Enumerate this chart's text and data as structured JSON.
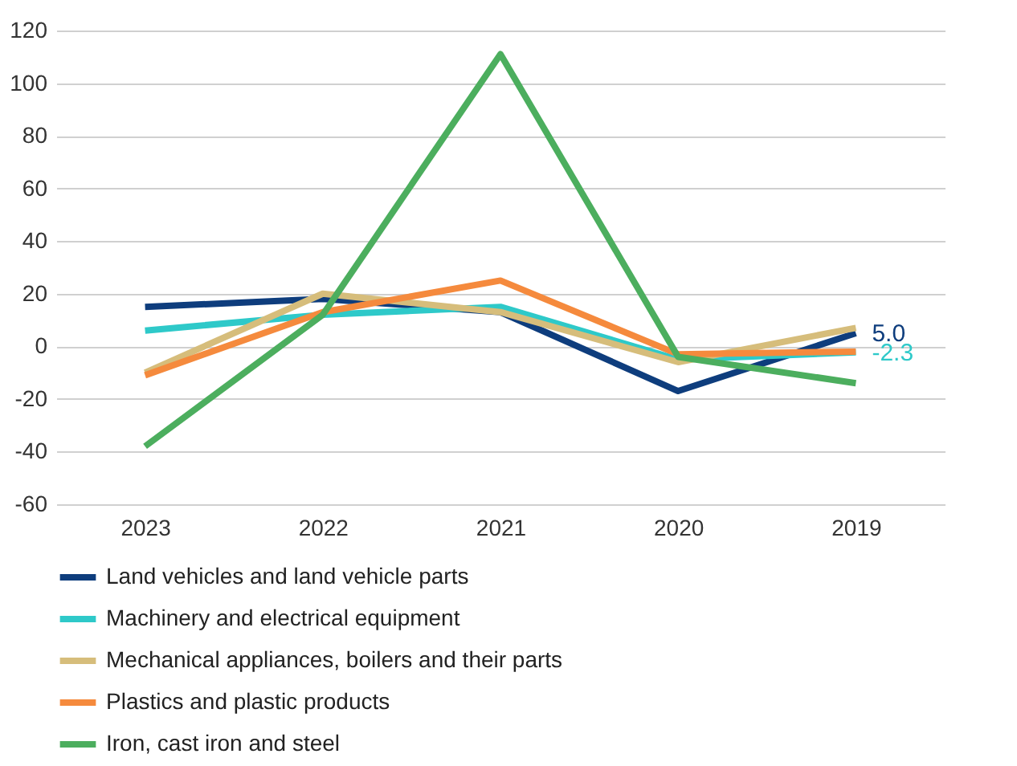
{
  "chart_data": {
    "type": "line",
    "categories": [
      "2023",
      "2022",
      "2021",
      "2020",
      "2019"
    ],
    "ylim": [
      -60,
      120
    ],
    "yticks": [
      -60,
      -40,
      -20,
      0,
      20,
      40,
      60,
      80,
      100,
      120
    ],
    "grid": "y",
    "legend": "bottom",
    "marker": "none",
    "line_style": "solid",
    "series": [
      {
        "name": "Land vehicles and land vehicle parts",
        "color": "#0e3d7d",
        "values": [
          15,
          18,
          13,
          -17,
          5.0
        ],
        "value_labels": [
          null,
          null,
          null,
          null,
          "5.0"
        ]
      },
      {
        "name": "Machinery and electrical equipment",
        "color": "#2ec9c9",
        "values": [
          6,
          12,
          15,
          -5,
          -2.3
        ],
        "value_labels": [
          null,
          null,
          null,
          null,
          "-2.3"
        ]
      },
      {
        "name": "Mechanical appliances, boilers and their parts",
        "color": "#d6bd7b",
        "values": [
          -10,
          20,
          13,
          -6,
          7
        ]
      },
      {
        "name": "Plastics and plastic products",
        "color": "#f58a3d",
        "values": [
          -11,
          13,
          25,
          -3,
          -2
        ]
      },
      {
        "name": "Iron, cast iron and steel",
        "color": "#4cae5e",
        "values": [
          -38,
          12,
          111,
          -4,
          -14
        ]
      }
    ]
  }
}
